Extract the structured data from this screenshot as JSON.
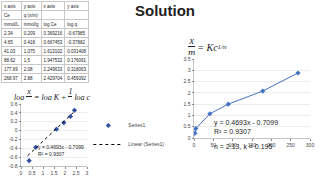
{
  "title": "Solution",
  "table": {
    "header": [
      [
        "x axis",
        "y axis",
        "x axis",
        "y axis"
      ],
      [
        "Ce",
        "q (x/m)",
        null,
        null
      ],
      [
        "mmol/L",
        "mmol/g",
        "log Ce",
        "log q"
      ]
    ],
    "rows": [
      [
        2.34,
        0.209,
        0.369216,
        -0.67985
      ],
      [
        4.65,
        0.418,
        0.667453,
        -0.37882
      ],
      [
        41.03,
        1.075,
        1.613102,
        0.031408
      ],
      [
        88.62,
        1.5,
        1.947532,
        0.176091
      ],
      [
        177.69,
        2.08,
        2.249633,
        0.318063
      ],
      [
        268.97,
        2.88,
        2.429704,
        0.459392
      ]
    ]
  },
  "equation_1": {
    "numerator": "x",
    "denominator": "m",
    "rhs": "= Kc",
    "exponent": "1/n"
  },
  "equation_2": {
    "prefix": "log",
    "numerator": "x",
    "denominator": "m",
    "middle": "= log K +",
    "frac_numerator": "1",
    "frac_denominator": "n",
    "suffix": "log c"
  },
  "fit": {
    "equation": "y = 0.4693x - 0.7099",
    "r_squared": "R² = 0.9307",
    "parameters": "n = 2.13, k = 0.195"
  },
  "chart_data": [
    {
      "type": "scatter",
      "xlim": [
        0,
        3
      ],
      "xticks": [
        0,
        0.5,
        1,
        1.5,
        2,
        2.5,
        3
      ],
      "ylim": [
        -0.8,
        0.6
      ],
      "yticks": [
        -0.8,
        -0.6,
        -0.4,
        -0.2,
        0,
        0.2,
        0.4,
        0.6
      ],
      "grid": true,
      "legend": "right",
      "annotations": [
        "y = 0.4693x - 0.7099",
        "R² = 0.9307"
      ],
      "series": [
        {
          "name": "Series1",
          "type": "scatter",
          "marker": "diamond",
          "color": "#2f4f9f",
          "x": [
            0.369216,
            0.667453,
            1.613102,
            1.947532,
            2.249633,
            2.429704
          ],
          "values": [
            -0.67985,
            -0.37882,
            0.031408,
            0.176091,
            0.318063,
            0.459392
          ]
        },
        {
          "name": "Linear (Series1)",
          "type": "line",
          "line_style": "dotted",
          "color": "#000000",
          "x": [
            0.3,
            2.5
          ],
          "values": [
            -0.5691,
            0.4634
          ]
        }
      ]
    },
    {
      "type": "line",
      "marker": "diamond",
      "xlim": [
        0,
        300
      ],
      "xticks": [
        0,
        50,
        100,
        150,
        200,
        250,
        300
      ],
      "ylim": [
        0,
        3.5
      ],
      "yticks": [
        0,
        0.5,
        1,
        1.5,
        2,
        2.5,
        3,
        3.5
      ],
      "grid": true,
      "series": [
        {
          "color": "#4472c4",
          "x": [
            2.34,
            4.65,
            41.03,
            88.62,
            177.69,
            268.97
          ],
          "values": [
            0.209,
            0.418,
            1.075,
            1.5,
            2.08,
            2.88
          ]
        }
      ]
    }
  ]
}
